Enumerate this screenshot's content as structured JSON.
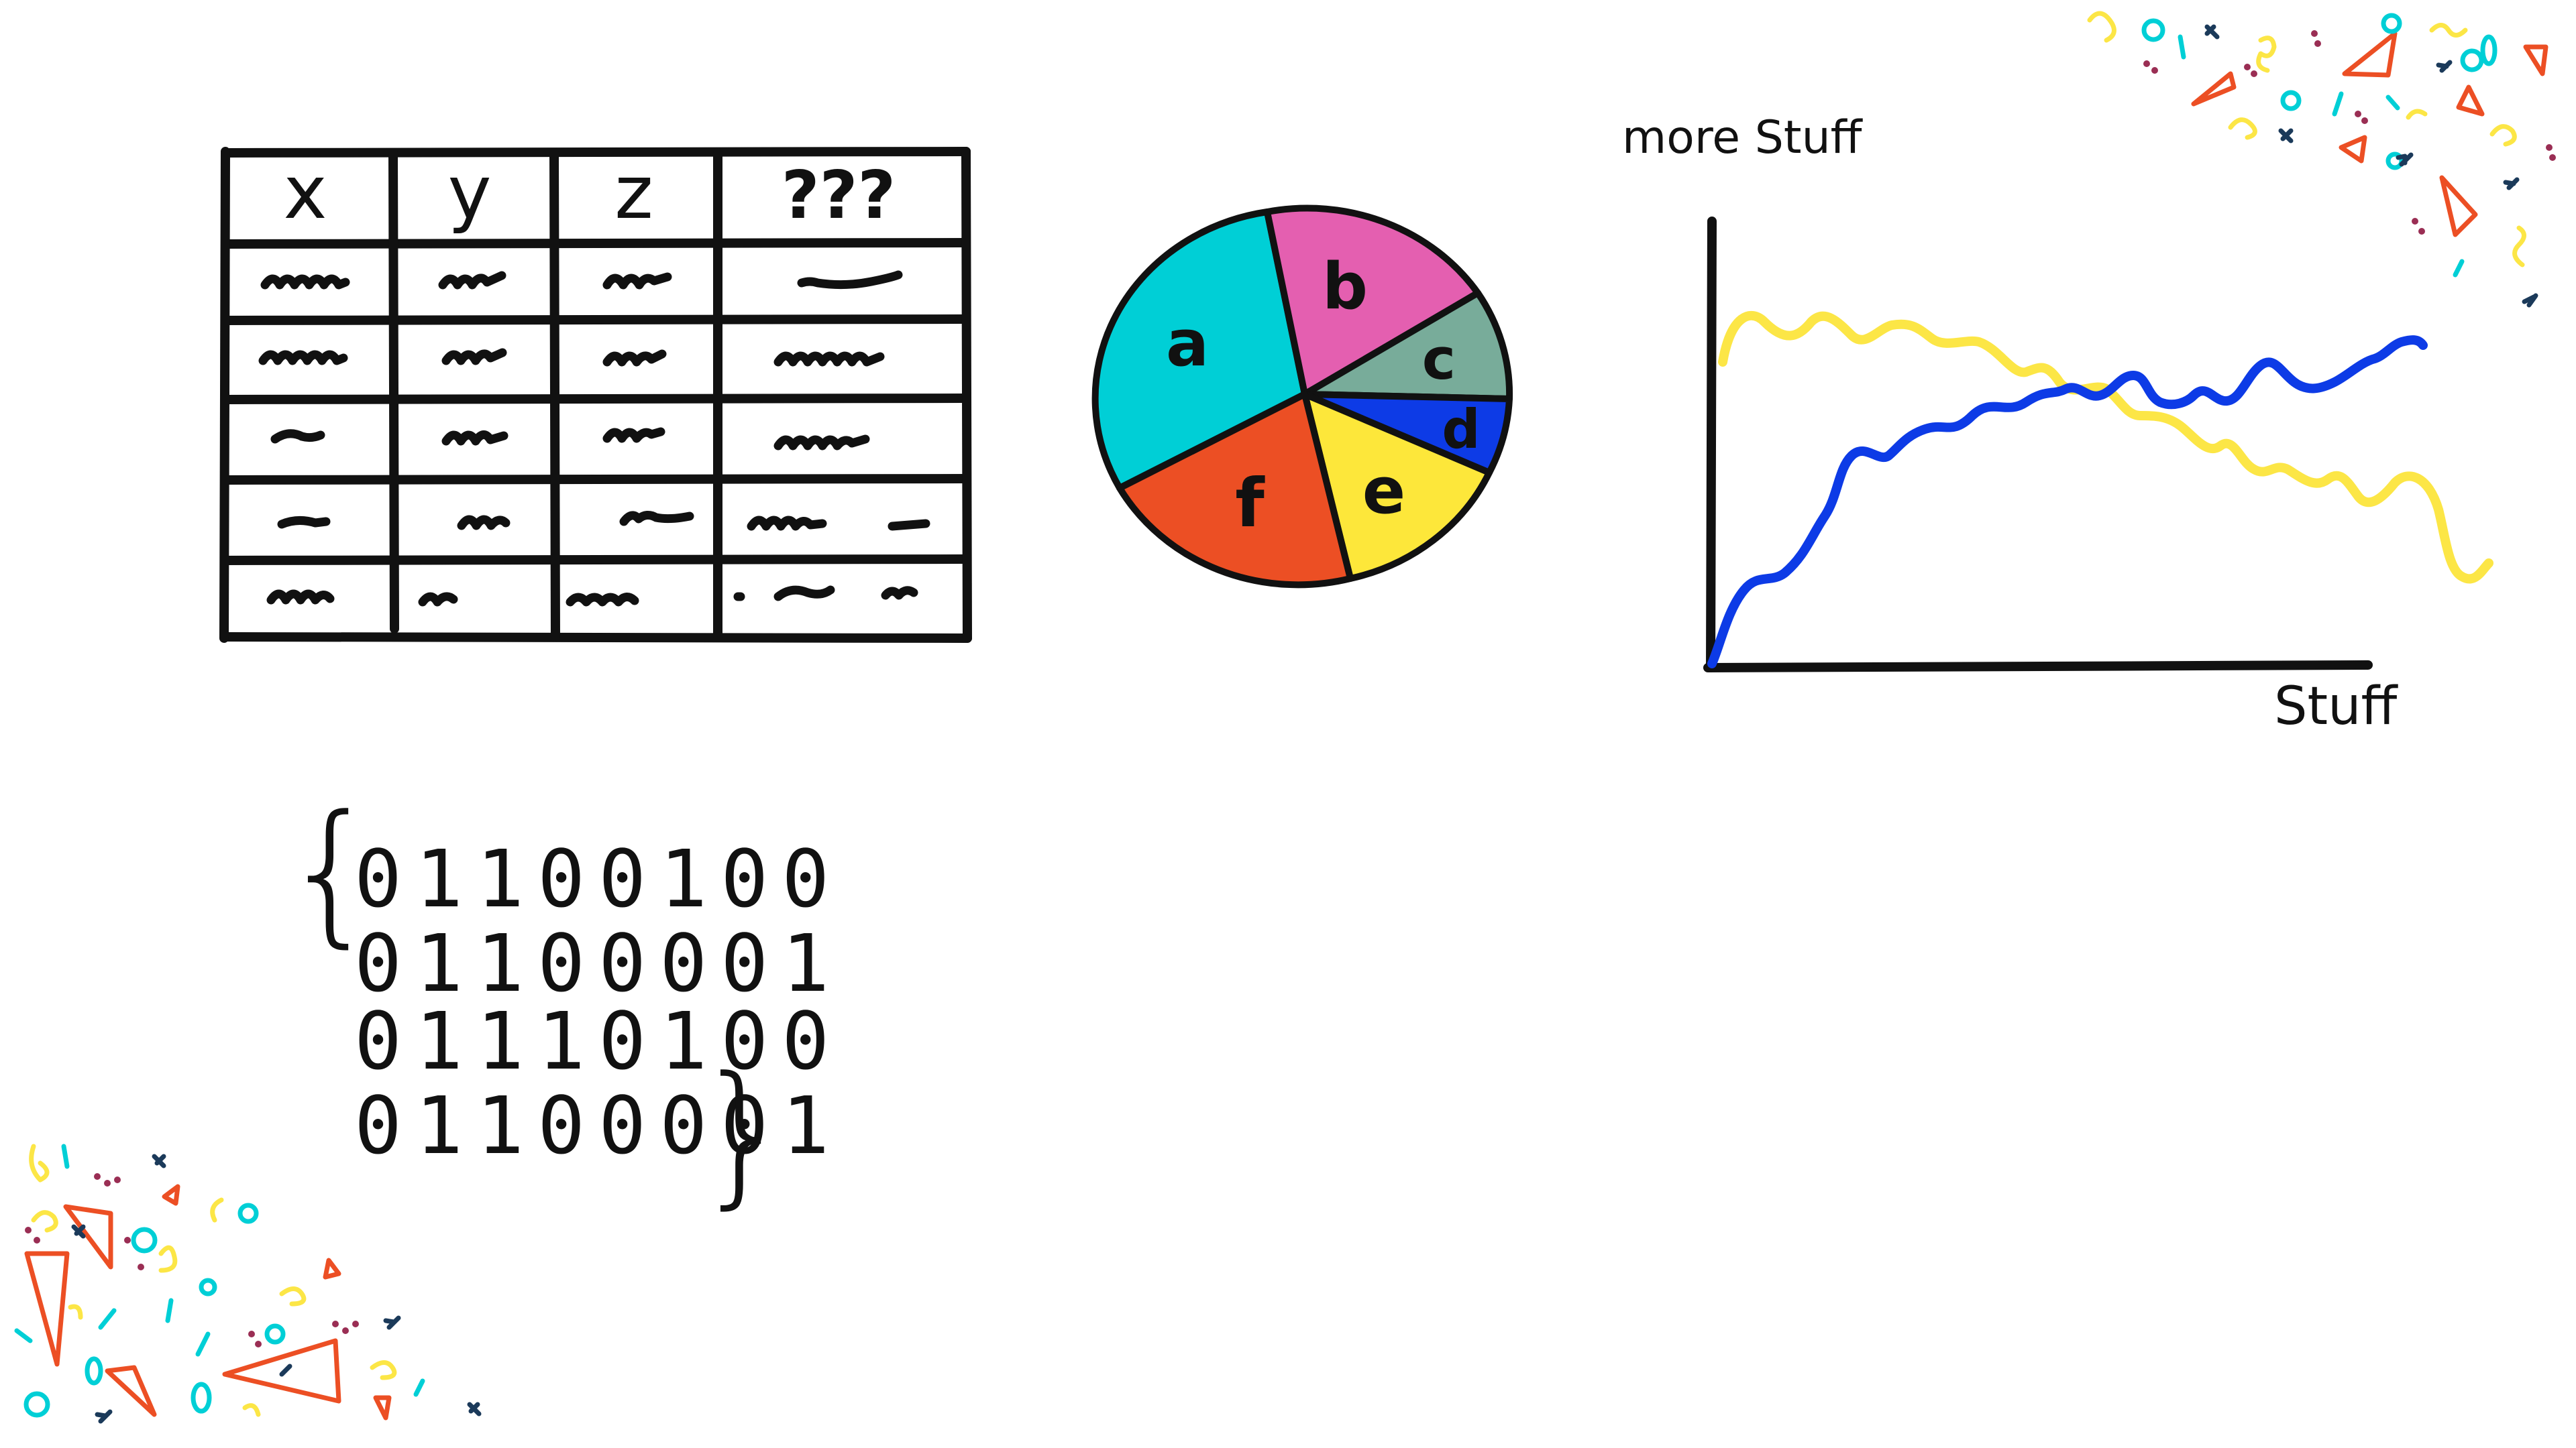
{
  "colors": {
    "ink": "#111111",
    "cyan": "#00cfd6",
    "pink": "#e45fb0",
    "sage": "#78ac9a",
    "blue": "#0d3be6",
    "yellow": "#fde73a",
    "orange": "#ec4f24",
    "line_yellow": "#fce646",
    "confetti_navy": "#1b3a5a",
    "confetti_maroon": "#9a2e54"
  },
  "table": {
    "headers": [
      "x",
      "y",
      "z",
      "???"
    ]
  },
  "pie": {
    "labels": [
      "a",
      "b",
      "c",
      "d",
      "e",
      "f"
    ]
  },
  "chart_data": {
    "type": "line",
    "xlabel": "Stuff",
    "ylabel": "more Stuff",
    "series": [
      {
        "color": "yellow",
        "shape": "starts high, wavy, declines toward the right"
      },
      {
        "color": "blue",
        "shape": "starts at origin, rises quickly, then wavy gradual increase"
      }
    ]
  },
  "binary": {
    "open_brace": "{",
    "lines": [
      "01100100",
      "01100001",
      "01110100",
      "01100001"
    ],
    "close_brace": "}"
  }
}
